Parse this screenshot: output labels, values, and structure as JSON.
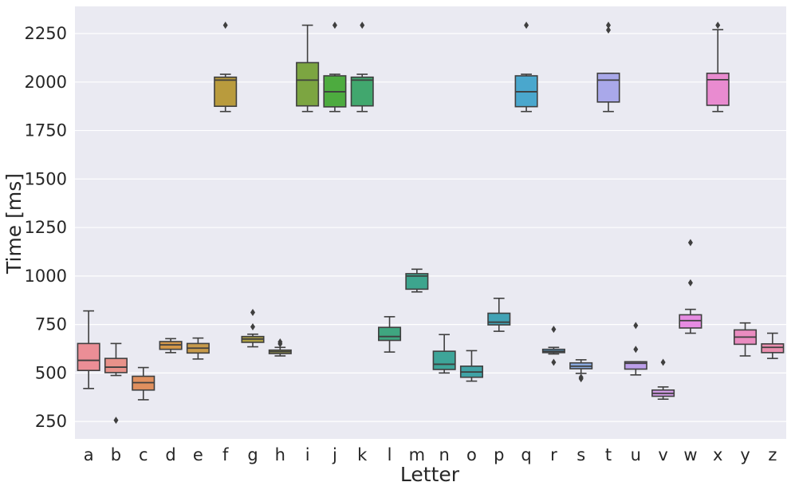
{
  "chart_data": {
    "type": "box",
    "title": "",
    "xlabel": "Letter",
    "ylabel": "Time [ms]",
    "ylim": [
      160,
      2390
    ],
    "yticks": [
      250,
      500,
      750,
      1000,
      1250,
      1500,
      1750,
      2000,
      2250
    ],
    "grid": true,
    "categories": [
      "a",
      "b",
      "c",
      "d",
      "e",
      "f",
      "g",
      "h",
      "i",
      "j",
      "k",
      "l",
      "m",
      "n",
      "o",
      "p",
      "q",
      "r",
      "s",
      "t",
      "u",
      "v",
      "w",
      "x",
      "y",
      "z"
    ],
    "series": [
      {
        "name": "a",
        "color": "#EB8E96",
        "whisker_low": 420,
        "q1": 513,
        "median": 565,
        "q3": 652,
        "whisker_high": 820,
        "outliers": []
      },
      {
        "name": "b",
        "color": "#E8928A",
        "whisker_low": 487,
        "q1": 502,
        "median": 530,
        "q3": 575,
        "whisker_high": 652,
        "outliers": [
          256
        ]
      },
      {
        "name": "c",
        "color": "#E0905F",
        "whisker_low": 362,
        "q1": 412,
        "median": 450,
        "q3": 483,
        "whisker_high": 528,
        "outliers": []
      },
      {
        "name": "d",
        "color": "#D2974A",
        "whisker_low": 605,
        "q1": 622,
        "median": 645,
        "q3": 662,
        "whisker_high": 677,
        "outliers": []
      },
      {
        "name": "e",
        "color": "#C79A4B",
        "whisker_low": 572,
        "q1": 603,
        "median": 628,
        "q3": 652,
        "whisker_high": 680,
        "outliers": []
      },
      {
        "name": "f",
        "color": "#B99B3D",
        "whisker_low": 1848,
        "q1": 1875,
        "median": 2010,
        "q3": 2025,
        "whisker_high": 2040,
        "outliers": [
          2293
        ]
      },
      {
        "name": "g",
        "color": "#AEA145",
        "whisker_low": 635,
        "q1": 658,
        "median": 675,
        "q3": 688,
        "whisker_high": 700,
        "outliers": [
          738,
          812
        ]
      },
      {
        "name": "h",
        "color": "#A0A34D",
        "whisker_low": 588,
        "q1": 600,
        "median": 610,
        "q3": 618,
        "whisker_high": 632,
        "outliers": [
          650,
          660
        ]
      },
      {
        "name": "i",
        "color": "#7CA541",
        "whisker_low": 1848,
        "q1": 1877,
        "median": 2010,
        "q3": 2100,
        "whisker_high": 2293,
        "outliers": []
      },
      {
        "name": "j",
        "color": "#4DAB3F",
        "whisker_low": 1848,
        "q1": 1872,
        "median": 1950,
        "q3": 2032,
        "whisker_high": 2040,
        "outliers": [
          2293
        ]
      },
      {
        "name": "k",
        "color": "#41A76E",
        "whisker_low": 1848,
        "q1": 1877,
        "median": 2010,
        "q3": 2025,
        "whisker_high": 2040,
        "outliers": [
          2293
        ]
      },
      {
        "name": "l",
        "color": "#3FA680",
        "whisker_low": 608,
        "q1": 668,
        "median": 688,
        "q3": 735,
        "whisker_high": 790,
        "outliers": []
      },
      {
        "name": "m",
        "color": "#3DA58E",
        "whisker_low": 918,
        "q1": 932,
        "median": 1000,
        "q3": 1012,
        "whisker_high": 1035,
        "outliers": []
      },
      {
        "name": "n",
        "color": "#3EA599",
        "whisker_low": 500,
        "q1": 518,
        "median": 545,
        "q3": 612,
        "whisker_high": 698,
        "outliers": []
      },
      {
        "name": "o",
        "color": "#40A3A6",
        "whisker_low": 458,
        "q1": 478,
        "median": 505,
        "q3": 535,
        "whisker_high": 615,
        "outliers": []
      },
      {
        "name": "p",
        "color": "#41A2B5",
        "whisker_low": 715,
        "q1": 748,
        "median": 762,
        "q3": 808,
        "whisker_high": 885,
        "outliers": []
      },
      {
        "name": "q",
        "color": "#4AA7CD",
        "whisker_low": 1848,
        "q1": 1873,
        "median": 1950,
        "q3": 2032,
        "whisker_high": 2040,
        "outliers": [
          2293
        ]
      },
      {
        "name": "r",
        "color": "#5CA8DA",
        "whisker_low": 598,
        "q1": 605,
        "median": 612,
        "q3": 622,
        "whisker_high": 632,
        "outliers": [
          555,
          725
        ]
      },
      {
        "name": "s",
        "color": "#8AAAE0",
        "whisker_low": 498,
        "q1": 522,
        "median": 535,
        "q3": 552,
        "whisker_high": 568,
        "outliers": [
          470,
          478
        ]
      },
      {
        "name": "t",
        "color": "#A9A8EA",
        "whisker_low": 1848,
        "q1": 1897,
        "median": 2010,
        "q3": 2045,
        "whisker_high": 2045,
        "outliers": [
          2268,
          2293
        ]
      },
      {
        "name": "u",
        "color": "#BC9EEA",
        "whisker_low": 490,
        "q1": 520,
        "median": 550,
        "q3": 558,
        "whisker_high": 558,
        "outliers": [
          622,
          745
        ]
      },
      {
        "name": "v",
        "color": "#D29BE6",
        "whisker_low": 365,
        "q1": 380,
        "median": 395,
        "q3": 412,
        "whisker_high": 428,
        "outliers": [
          555
        ]
      },
      {
        "name": "w",
        "color": "#E68BE2",
        "whisker_low": 705,
        "q1": 732,
        "median": 770,
        "q3": 800,
        "whisker_high": 828,
        "outliers": [
          965,
          1172
        ]
      },
      {
        "name": "x",
        "color": "#E98BD0",
        "whisker_low": 1848,
        "q1": 1880,
        "median": 2012,
        "q3": 2045,
        "whisker_high": 2270,
        "outliers": [
          2293
        ]
      },
      {
        "name": "y",
        "color": "#EA8CC0",
        "whisker_low": 588,
        "q1": 648,
        "median": 685,
        "q3": 722,
        "whisker_high": 758,
        "outliers": []
      },
      {
        "name": "z",
        "color": "#EA8EAE",
        "whisker_low": 575,
        "q1": 605,
        "median": 632,
        "q3": 650,
        "whisker_high": 705,
        "outliers": []
      }
    ],
    "colors": {
      "background": "#EAEAF2",
      "grid": "#FFFFFF",
      "line": "#3F3F3F",
      "text": "#262626"
    }
  }
}
